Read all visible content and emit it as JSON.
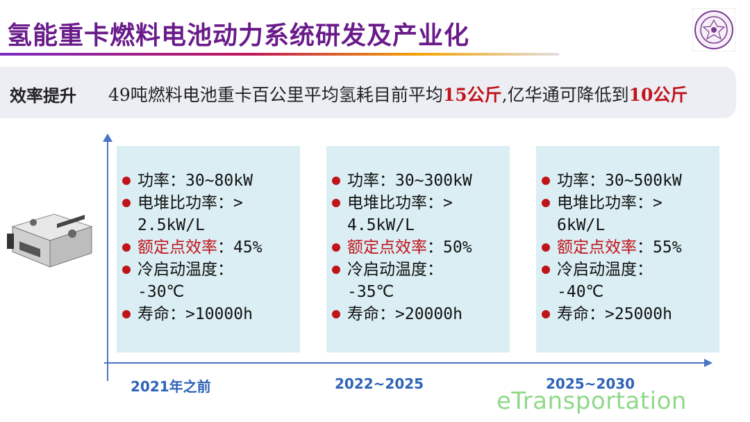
{
  "title": "氢能重卡燃料电池动力系统研发及产业化",
  "banner": {
    "label": "效率提升",
    "text_before": "49吨燃料电池重卡百公里平均氢耗目前平均",
    "highlight1": "15公斤",
    "text_middle": ",亿华通可降低到",
    "highlight2": "10公斤"
  },
  "colors": {
    "title": "#6a1b8a",
    "highlight": "#c0141b",
    "axis": "#4a74c4",
    "card": "#daeef3",
    "period": "#2e63b8",
    "watermark": "#8fd98a"
  },
  "cards": [
    {
      "period": "2021年之前",
      "power": "功率：30~80kW",
      "specific_power_1": "电堆比功率：>",
      "specific_power_2": "2.5kW/L",
      "efficiency_label": "额定点效率",
      "efficiency_value": "：45%",
      "cold_start_1": "冷启动温度：",
      "cold_start_2": "-30℃",
      "life": "寿命：>10000h"
    },
    {
      "period": "2022~2025",
      "power": "功率：30~300kW",
      "specific_power_1": "电堆比功率：>",
      "specific_power_2": "4.5kW/L",
      "efficiency_label": "额定点效率",
      "efficiency_value": "：50%",
      "cold_start_1": "冷启动温度：",
      "cold_start_2": "-35℃",
      "life": "寿命：>20000h"
    },
    {
      "period": "2025~2030",
      "power": "功率：30~500kW",
      "specific_power_1": "电堆比功率：>",
      "specific_power_2": "6kW/L",
      "efficiency_label": "额定点效率",
      "efficiency_value": "：55%",
      "cold_start_1": "冷启动温度：",
      "cold_start_2": "-40℃",
      "life": "寿命：>25000h"
    }
  ],
  "watermark": "eTransportation",
  "icons": {
    "logo": "university-seal-icon",
    "product": "fuel-cell-system-image"
  }
}
